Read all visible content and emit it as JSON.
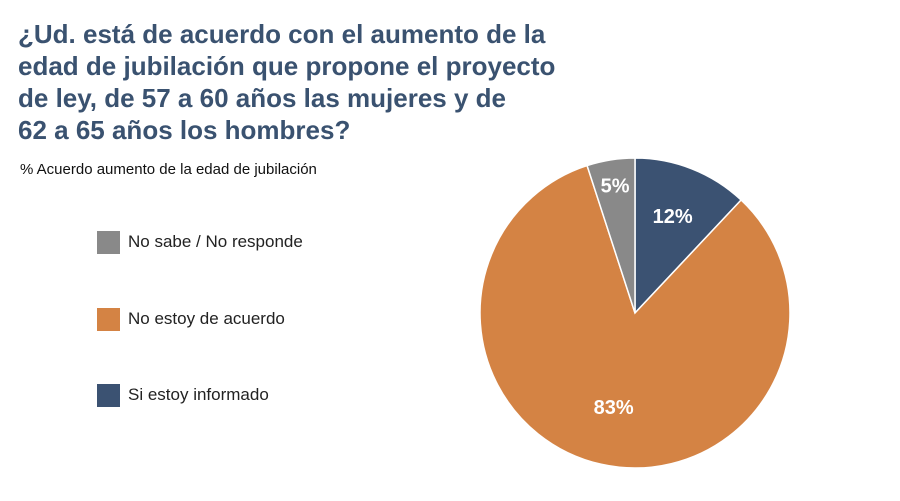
{
  "title_lines": [
    "¿Ud. está de acuerdo con el aumento de la",
    "edad de jubilación que propone el proyecto",
    "de ley, de 57 a 60 años las mujeres y de",
    "62 a 65 años los hombres?"
  ],
  "subtitle": "% Acuerdo aumento de la edad de jubilación",
  "chart_data": {
    "type": "pie",
    "title": "¿Ud. está de acuerdo con el aumento de la edad de jubilación que propone el proyecto de ley, de 57 a 60 años las mujeres y de 62 a 65 años los hombres?",
    "subtitle": "% Acuerdo aumento de la edad de jubilación",
    "legend_position": "left",
    "slices": [
      {
        "name": "Si estoy informado",
        "value": 12,
        "label": "12%",
        "color": "#3b5272"
      },
      {
        "name": "No estoy de acuerdo",
        "value": 83,
        "label": "83%",
        "color": "#d48344"
      },
      {
        "name": "No sabe / No responde",
        "value": 5,
        "label": "5%",
        "color": "#898989"
      }
    ],
    "legend_order": [
      "No sabe / No responde",
      "No estoy de acuerdo",
      "Si estoy informado"
    ]
  }
}
